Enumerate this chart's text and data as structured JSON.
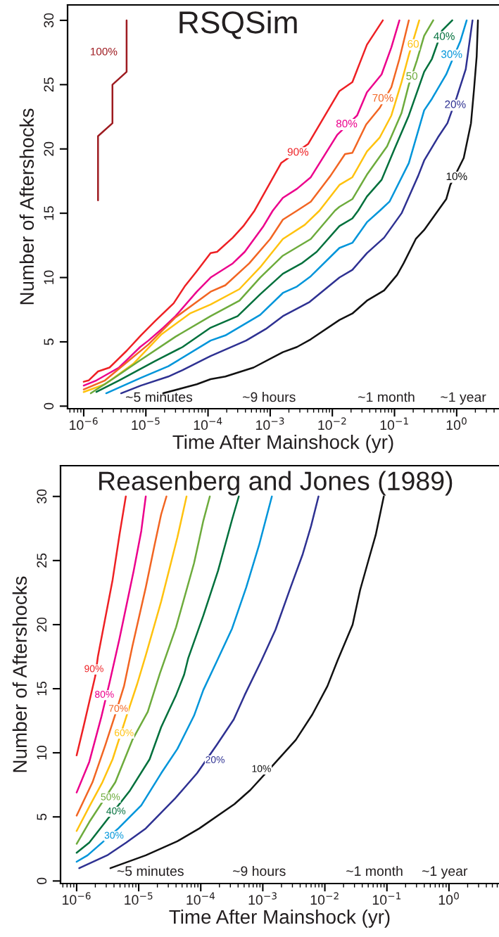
{
  "chart_data": [
    {
      "type": "line",
      "title": "RSQSim",
      "xlabel": "Time After Mainshock (yr)",
      "ylabel": "Number of Aftershocks",
      "log": "x",
      "xlim": [
        5.5e-07,
        4.8
      ],
      "ylim": [
        -0.2,
        31.2
      ],
      "xticks": [
        {
          "value": 1e-06,
          "label": "10$^{−6}$"
        },
        {
          "value": 1e-05,
          "label": "10$^{−5}$"
        },
        {
          "value": 0.0001,
          "label": "10$^{−4}$"
        },
        {
          "value": 0.001,
          "label": "10$^{−3}$"
        },
        {
          "value": 0.01,
          "label": "10$^{−2}$"
        },
        {
          "value": 0.1,
          "label": "10$^{−1}$"
        },
        {
          "value": 1,
          "label": "10$^{0}$"
        }
      ],
      "yticks": [
        0,
        5,
        10,
        15,
        20,
        25,
        30
      ],
      "series": [
        {
          "color": "#9e1b20",
          "x": [
            1.7e-06,
            1.7e-06,
            2.9e-06,
            2.9e-06,
            4.9e-06,
            4.9e-06
          ],
          "values": [
            16,
            21,
            22,
            25,
            26,
            30
          ]
        },
        {
          "color": "#ee2024",
          "x": [
            1e-06,
            1.2e-06,
            1.7e-06,
            2.6e-06,
            4.9e-06,
            8.3e-06,
            1.4e-05,
            2.8e-05,
            4.2e-05,
            6.6e-05,
            0.00011,
            0.00014,
            0.00025,
            0.00037,
            0.00056,
            0.0015,
            0.0041,
            0.013,
            0.021,
            0.036,
            0.065
          ],
          "values": [
            1.9,
            2.0,
            2.7,
            3.0,
            4.3,
            5.5,
            6.6,
            8.0,
            9.3,
            10.5,
            11.9,
            12.0,
            13.1,
            14.0,
            15.2,
            18.9,
            20.4,
            24.5,
            25.2,
            28.1,
            30
          ]
        },
        {
          "color": "#ec008c",
          "x": [
            1e-06,
            1.6e-06,
            3.7e-06,
            8.1e-06,
            1.1e-05,
            1.9e-05,
            3e-05,
            6.6e-05,
            0.00011,
            0.00025,
            0.00039,
            0.00078,
            0.0011,
            0.0016,
            0.0027,
            0.0045,
            0.012,
            0.025,
            0.036,
            0.062,
            0.089,
            0.12
          ],
          "values": [
            1.6,
            2.0,
            3.0,
            4.6,
            5.1,
            6.1,
            7.0,
            8.9,
            10.0,
            11.1,
            12.0,
            14.0,
            15.2,
            16.2,
            16.9,
            17.8,
            21.1,
            22.6,
            24.4,
            25.8,
            27.9,
            30
          ]
        },
        {
          "color": "#f26522",
          "x": [
            1e-06,
            2.2e-06,
            4.9e-06,
            1.1e-05,
            3e-05,
            0.00011,
            0.00019,
            0.00046,
            0.001,
            0.0016,
            0.0027,
            0.0045,
            0.0093,
            0.016,
            0.021,
            0.035,
            0.058,
            0.089,
            0.12,
            0.17
          ],
          "values": [
            1.3,
            2.0,
            3.4,
            4.8,
            6.9,
            8.9,
            9.4,
            11.1,
            13.0,
            14.5,
            15.2,
            15.9,
            17.9,
            19.6,
            19.7,
            21.9,
            23.2,
            24.8,
            27.0,
            30
          ]
        },
        {
          "color": "#ffc20e",
          "x": [
            1e-06,
            2.2e-06,
            6.3e-06,
            1.8e-05,
            5.1e-05,
            0.00011,
            0.00032,
            0.00069,
            0.0016,
            0.0036,
            0.0062,
            0.013,
            0.021,
            0.036,
            0.058,
            0.089,
            0.13,
            0.17,
            0.25
          ],
          "values": [
            1.1,
            1.7,
            3.3,
            5.6,
            7.2,
            7.9,
            9.1,
            10.8,
            13.0,
            14.1,
            15.2,
            17.2,
            17.8,
            19.8,
            20.9,
            22.6,
            25.2,
            27.3,
            30
          ]
        },
        {
          "color": "#6dab3c",
          "x": [
            1.3e-06,
            2.9e-06,
            8.3e-06,
            3e-05,
            0.00011,
            0.00032,
            0.00069,
            0.0016,
            0.0045,
            0.011,
            0.013,
            0.021,
            0.036,
            0.076,
            0.13,
            0.17,
            0.23,
            0.3,
            0.42
          ],
          "values": [
            1.0,
            2.1,
            3.6,
            5.4,
            7.0,
            8.2,
            10.0,
            11.7,
            13.0,
            15.2,
            15.5,
            16.1,
            18.0,
            20.2,
            22.8,
            25.0,
            26.9,
            28.8,
            30
          ]
        },
        {
          "color": "#00703c",
          "x": [
            1.6e-06,
            3.7e-06,
            1.4e-05,
            3.9e-05,
            0.00011,
            0.0003,
            0.00069,
            0.0016,
            0.0032,
            0.0056,
            0.013,
            0.021,
            0.026,
            0.036,
            0.062,
            0.1,
            0.17,
            0.3,
            0.4,
            0.58,
            0.85
          ],
          "values": [
            1.1,
            2.0,
            3.5,
            4.6,
            6.1,
            7.0,
            8.7,
            10.3,
            11.1,
            12.0,
            14.0,
            14.6,
            15.2,
            16.3,
            17.6,
            20.0,
            22.6,
            26.0,
            27.0,
            29.2,
            30
          ]
        },
        {
          "color": "#0095da",
          "x": [
            2.3e-06,
            8.3e-06,
            2.3e-05,
            0.00011,
            0.00019,
            0.00069,
            0.0016,
            0.0027,
            0.0045,
            0.013,
            0.021,
            0.036,
            0.058,
            0.083,
            0.17,
            0.3,
            0.4,
            0.68,
            0.83,
            1.15,
            1.45
          ],
          "values": [
            1.0,
            2.2,
            3.1,
            5.1,
            5.5,
            7.1,
            8.8,
            9.3,
            10.1,
            12.3,
            12.7,
            14.3,
            15.2,
            15.9,
            18.9,
            23.0,
            23.9,
            25.8,
            26.8,
            28.4,
            30
          ]
        },
        {
          "color": "#2e3192",
          "x": [
            4e-06,
            8.3e-06,
            2.3e-05,
            3.9e-05,
            0.00011,
            0.00041,
            0.00085,
            0.0016,
            0.0043,
            0.013,
            0.021,
            0.036,
            0.068,
            0.13,
            0.24,
            0.3,
            0.5,
            0.71,
            1.0,
            1.4,
            1.8
          ],
          "values": [
            1.0,
            1.6,
            2.3,
            2.8,
            3.9,
            5.1,
            6.0,
            7.0,
            8.1,
            10.0,
            10.6,
            11.9,
            13.1,
            15.0,
            17.9,
            19.1,
            20.9,
            22.0,
            24.0,
            26.2,
            30
          ]
        },
        {
          "color": "#111111",
          "x": [
            1.9e-05,
            6.6e-05,
            0.00011,
            0.00019,
            0.00054,
            0.0016,
            0.0027,
            0.0045,
            0.013,
            0.021,
            0.036,
            0.068,
            0.11,
            0.14,
            0.22,
            0.3,
            0.5,
            0.68,
            0.79,
            1.3,
            1.7,
            1.9,
            2.1,
            2.2
          ],
          "values": [
            1.0,
            1.7,
            2.1,
            2.3,
            3.0,
            4.2,
            4.6,
            5.2,
            6.7,
            7.2,
            8.2,
            9.0,
            10.2,
            11.1,
            13.0,
            13.7,
            15.2,
            16.1,
            17.2,
            19.3,
            22.0,
            24.6,
            27.2,
            30
          ]
        }
      ],
      "annotations": [
        {
          "text": "100%",
          "x": 2.1e-06,
          "y": 27.5
        },
        {
          "text": "90%",
          "x": 0.0028,
          "y": 19.7
        },
        {
          "text": "80%",
          "x": 0.017,
          "y": 21.9
        },
        {
          "text": "70%",
          "x": 0.065,
          "y": 23.9
        },
        {
          "text": "60",
          "x": 0.2,
          "y": 28.1
        },
        {
          "text": "50",
          "x": 0.19,
          "y": 25.6
        },
        {
          "text": "40%",
          "x": 0.63,
          "y": 28.7
        },
        {
          "text": "30%",
          "x": 0.83,
          "y": 27.3
        },
        {
          "text": "20%",
          "x": 0.95,
          "y": 23.4
        },
        {
          "text": "10%",
          "x": 1.0,
          "y": 17.8
        },
        "~5 minutes",
        "~9 hours",
        "~1 month",
        "~1 year"
      ]
    },
    {
      "type": "line",
      "title": "Reasenberg and Jones (1989)",
      "xlabel": "Time After Mainshock (yr)",
      "ylabel": "Number of Aftershocks",
      "log": "x",
      "xlim": [
        5.5e-07,
        6.4
      ],
      "ylim": [
        -0.2,
        32.4
      ],
      "xticks": [
        {
          "value": 1e-06,
          "label": "10$^{−6}$"
        },
        {
          "value": 1e-05,
          "label": "10$^{−5}$"
        },
        {
          "value": 0.0001,
          "label": "10$^{−4}$"
        },
        {
          "value": 0.001,
          "label": "10$^{−3}$"
        },
        {
          "value": 0.01,
          "label": "10$^{−2}$"
        },
        {
          "value": 0.1,
          "label": "10$^{−1}$"
        },
        {
          "value": 1,
          "label": "10$^{0}$"
        }
      ],
      "yticks": [
        0,
        5,
        10,
        15,
        20,
        25,
        30
      ],
      "series": [
        {
          "color": "#ee2024",
          "x": [
            1e-06,
            1.3e-06,
            2e-06,
            2.2e-06,
            3.8e-06,
            4.9e-06,
            6.2e-06
          ],
          "values": [
            9.8,
            12.1,
            16.0,
            17.5,
            23.5,
            27.0,
            30
          ]
        },
        {
          "color": "#ec008c",
          "x": [
            1e-06,
            1.6e-06,
            2.5e-06,
            3.4e-06,
            4.9e-06,
            8.3e-06,
            1.1e-05,
            1.3e-05
          ],
          "values": [
            6.9,
            9.3,
            12.8,
            15.5,
            18.9,
            24.2,
            27.3,
            30
          ]
        },
        {
          "color": "#f26522",
          "x": [
            1e-06,
            1.8e-06,
            2.9e-06,
            4.2e-06,
            5.8e-06,
            7.9e-06,
            1.3e-05,
            1.8e-05,
            2.3e-05,
            2.8e-05
          ],
          "values": [
            5.1,
            7.7,
            10.6,
            13.0,
            15.2,
            18.3,
            22.9,
            26.2,
            28.6,
            30
          ]
        },
        {
          "color": "#ffc20e",
          "x": [
            1e-06,
            1.6e-06,
            2.6e-06,
            3.8e-06,
            6.3e-06,
            9.5e-06,
            1.3e-05,
            2.3e-05,
            4.2e-05,
            5.9e-05
          ],
          "values": [
            3.9,
            5.8,
            7.7,
            9.5,
            12.8,
            15.4,
            17.6,
            21.8,
            26.8,
            30
          ]
        },
        {
          "color": "#6dab3c",
          "x": [
            1e-06,
            1.6e-06,
            4.2e-06,
            7.9e-06,
            1.4e-05,
            2.2e-05,
            4e-05,
            7.8e-05,
            0.00011,
            0.00014
          ],
          "values": [
            2.9,
            4.6,
            7.7,
            11.0,
            13.2,
            16.2,
            19.8,
            24.8,
            28.1,
            30
          ]
        },
        {
          "color": "#00703c",
          "x": [
            1e-06,
            1.6e-06,
            2.9e-06,
            7.1e-06,
            1.5e-05,
            2.3e-05,
            4e-05,
            5.4e-05,
            6.3e-05,
            0.00011,
            0.00019,
            0.00032,
            0.00041
          ],
          "values": [
            2.2,
            3.0,
            4.6,
            7.0,
            9.5,
            12.0,
            14.5,
            16.1,
            17.4,
            20.7,
            24.2,
            28.2,
            30
          ]
        },
        {
          "color": "#0095da",
          "x": [
            1e-06,
            1.5e-06,
            4.7e-06,
            1.1e-05,
            2.3e-05,
            4.2e-05,
            7.8e-05,
            0.00011,
            0.00018,
            0.00032,
            0.00054,
            0.00087,
            0.0014
          ],
          "values": [
            1.5,
            2.0,
            4.1,
            5.9,
            8.4,
            10.3,
            12.9,
            14.9,
            17.1,
            19.7,
            22.9,
            26.2,
            30
          ]
        },
        {
          "color": "#2e3192",
          "x": [
            1.1e-06,
            3.1e-06,
            6.3e-06,
            1.3e-05,
            3.8e-05,
            8.7e-05,
            0.00018,
            0.00034,
            0.00051,
            0.00095,
            0.0016,
            0.0028,
            0.0044,
            0.006,
            0.0079
          ],
          "values": [
            1.0,
            2.0,
            3.0,
            4.1,
            6.4,
            8.4,
            10.6,
            12.6,
            14.5,
            17.2,
            19.6,
            22.9,
            25.5,
            27.7,
            30
          ]
        },
        {
          "color": "#111111",
          "x": [
            3.5e-06,
            1.3e-05,
            4.2e-05,
            9.5e-05,
            0.00035,
            0.00063,
            0.0015,
            0.0034,
            0.0063,
            0.011,
            0.016,
            0.028,
            0.037,
            0.051,
            0.066,
            0.089
          ],
          "values": [
            1.0,
            2.0,
            3.1,
            4.1,
            6.0,
            7.1,
            9.1,
            11.0,
            13.0,
            15.2,
            17.2,
            20.0,
            22.7,
            25.1,
            27.0,
            30
          ]
        }
      ],
      "annotations": [
        {
          "text": "90%",
          "x": 1.9e-06,
          "y": 16.5
        },
        {
          "text": "80%",
          "x": 2.8e-06,
          "y": 14.5
        },
        {
          "text": "70%",
          "x": 4.7e-06,
          "y": 13.4
        },
        {
          "text": "60%",
          "x": 5.8e-06,
          "y": 11.5
        },
        {
          "text": "50%",
          "x": 3.5e-06,
          "y": 6.5
        },
        {
          "text": "40%",
          "x": 4.3e-06,
          "y": 5.4
        },
        {
          "text": "30%",
          "x": 4e-06,
          "y": 3.5
        },
        {
          "text": "20%",
          "x": 0.00017,
          "y": 9.4
        },
        {
          "text": "10%",
          "x": 0.00095,
          "y": 8.7
        },
        "~5 minutes",
        "~9 hours",
        "~1 month",
        "~1 year"
      ]
    }
  ]
}
